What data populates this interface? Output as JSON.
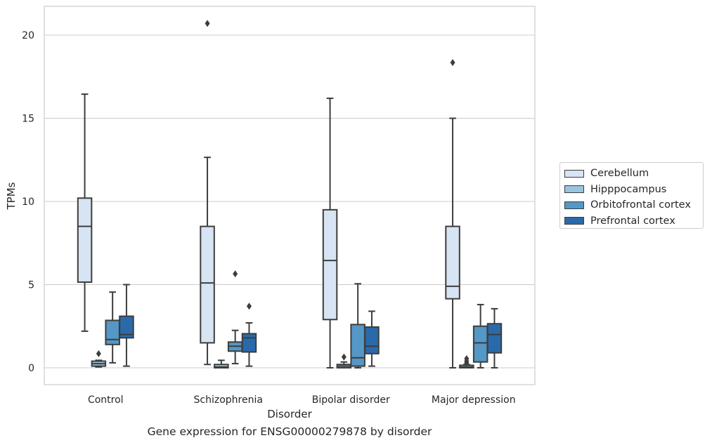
{
  "chart_data": {
    "type": "box",
    "title": "Gene expression for ENSG00000279878 by disorder",
    "xlabel": "Disorder",
    "ylabel": "TPMs",
    "categories": [
      "Control",
      "Schizophrenia",
      "Bipolar disorder",
      "Major depression"
    ],
    "ylim": [
      -1,
      21.7
    ],
    "yticks": [
      "0",
      "5",
      "10",
      "15",
      "20"
    ],
    "grid": true,
    "legend_position": "right",
    "series": [
      {
        "name": "Cerebellum",
        "color": "#d6e4f3",
        "boxes": [
          {
            "whislo": 2.2,
            "q1": 5.15,
            "med": 8.5,
            "q3": 10.2,
            "whishi": 16.45,
            "fliers": []
          },
          {
            "whislo": 0.2,
            "q1": 1.5,
            "med": 5.1,
            "q3": 8.5,
            "whishi": 12.65,
            "fliers": [
              20.7
            ]
          },
          {
            "whislo": 0.0,
            "q1": 2.9,
            "med": 6.45,
            "q3": 9.5,
            "whishi": 16.2,
            "fliers": []
          },
          {
            "whislo": 0.0,
            "q1": 4.15,
            "med": 4.9,
            "q3": 8.5,
            "whishi": 15.0,
            "fliers": [
              18.35
            ]
          }
        ]
      },
      {
        "name": "Hipppocampus",
        "color": "#9ac3de",
        "boxes": [
          {
            "whislo": 0.05,
            "q1": 0.1,
            "med": 0.25,
            "q3": 0.4,
            "whishi": 0.45,
            "fliers": [
              0.85
            ]
          },
          {
            "whislo": 0.0,
            "q1": 0.0,
            "med": 0.05,
            "q3": 0.2,
            "whishi": 0.45,
            "fliers": []
          },
          {
            "whislo": 0.0,
            "q1": 0.0,
            "med": 0.1,
            "q3": 0.2,
            "whishi": 0.35,
            "fliers": [
              0.65
            ]
          },
          {
            "whislo": 0.0,
            "q1": 0.0,
            "med": 0.05,
            "q3": 0.15,
            "whishi": 0.2,
            "fliers": [
              0.3,
              0.4,
              0.55
            ]
          }
        ]
      },
      {
        "name": "Orbitofrontal cortex",
        "color": "#5597c6",
        "boxes": [
          {
            "whislo": 0.3,
            "q1": 1.4,
            "med": 1.7,
            "q3": 2.85,
            "whishi": 4.55,
            "fliers": []
          },
          {
            "whislo": 0.25,
            "q1": 1.0,
            "med": 1.3,
            "q3": 1.55,
            "whishi": 2.25,
            "fliers": [
              5.65
            ]
          },
          {
            "whislo": 0.0,
            "q1": 0.1,
            "med": 0.6,
            "q3": 2.6,
            "whishi": 5.05,
            "fliers": []
          },
          {
            "whislo": 0.0,
            "q1": 0.35,
            "med": 1.5,
            "q3": 2.5,
            "whishi": 3.8,
            "fliers": []
          }
        ]
      },
      {
        "name": "Prefrontal cortex",
        "color": "#2a6aab",
        "boxes": [
          {
            "whislo": 0.1,
            "q1": 1.8,
            "med": 2.0,
            "q3": 3.1,
            "whishi": 5.0,
            "fliers": []
          },
          {
            "whislo": 0.1,
            "q1": 0.95,
            "med": 1.8,
            "q3": 2.05,
            "whishi": 2.7,
            "fliers": [
              3.7
            ]
          },
          {
            "whislo": 0.1,
            "q1": 0.85,
            "med": 1.3,
            "q3": 2.45,
            "whishi": 3.4,
            "fliers": []
          },
          {
            "whislo": 0.0,
            "q1": 0.9,
            "med": 2.0,
            "q3": 2.65,
            "whishi": 3.55,
            "fliers": []
          }
        ]
      }
    ]
  }
}
